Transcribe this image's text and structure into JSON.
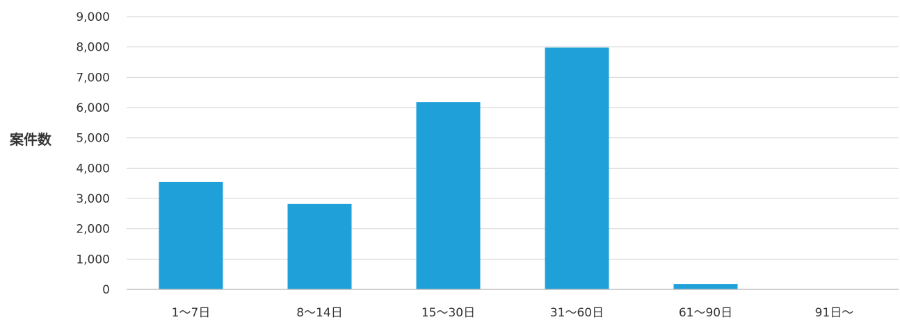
{
  "chart_data": {
    "type": "bar",
    "title": "",
    "xlabel": "",
    "ylabel": "案件数",
    "categories": [
      "1～7日",
      "8～14日",
      "15～30日",
      "31～60日",
      "61～90日",
      "91日～"
    ],
    "values": [
      3550,
      2820,
      6180,
      7980,
      180,
      0
    ],
    "ylim": [
      0,
      9000
    ],
    "yticks": [
      0,
      1000,
      2000,
      3000,
      4000,
      5000,
      6000,
      7000,
      8000,
      9000
    ],
    "ytick_labels": [
      "0",
      "1,000",
      "2,000",
      "3,000",
      "4,000",
      "5,000",
      "6,000",
      "7,000",
      "8,000",
      "9,000"
    ],
    "grid": true,
    "legend": "none",
    "colors": {
      "bar": "#1fa0d8",
      "grid": "#d0d0d0",
      "axis": "#bfbfbf",
      "text": "#333333"
    }
  }
}
